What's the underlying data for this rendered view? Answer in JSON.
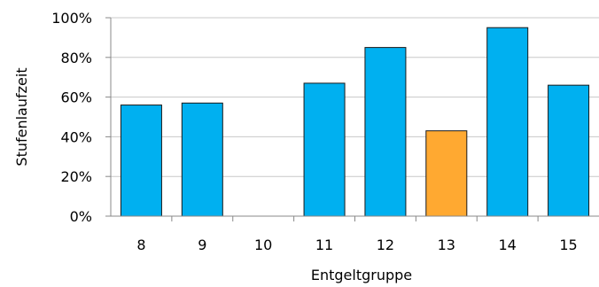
{
  "chart_data": {
    "type": "bar",
    "title": "",
    "xlabel": "Entgeltgruppe",
    "ylabel": "Stufenlaufzeit",
    "categories": [
      "8",
      "9",
      "10",
      "11",
      "12",
      "13",
      "14",
      "15"
    ],
    "values": [
      56,
      57,
      null,
      67,
      85,
      43,
      95,
      66
    ],
    "highlight_category": "13",
    "ylim": [
      0,
      100
    ],
    "yticks": [
      "0%",
      "20%",
      "40%",
      "60%",
      "80%",
      "100%"
    ],
    "ytick_values": [
      0,
      20,
      40,
      60,
      80,
      100
    ],
    "grid": true,
    "colors": {
      "bar": "#00b0f0",
      "highlight": "#ffa931",
      "bar_outline": "#1a1a1a",
      "grid": "#c8c8c8",
      "axis": "#888888"
    }
  }
}
